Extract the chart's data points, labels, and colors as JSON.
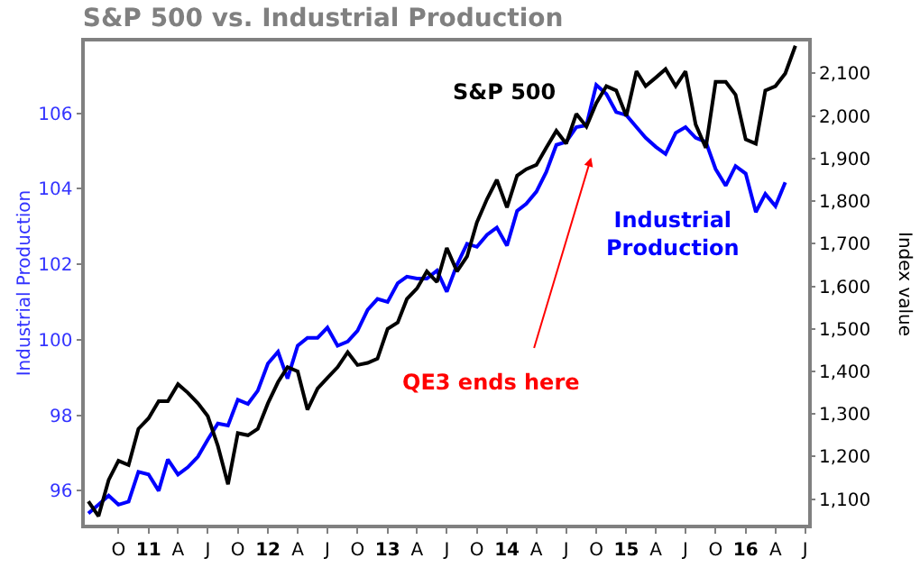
{
  "chart_data": {
    "type": "line",
    "title": "S&P 500 vs. Industrial Production",
    "ylabel": "Industrial Production",
    "y2label": "Index value",
    "x": [
      "2010-07",
      "2010-08",
      "2010-09",
      "2010-10",
      "2010-11",
      "2010-12",
      "2011-01",
      "2011-02",
      "2011-03",
      "2011-04",
      "2011-05",
      "2011-06",
      "2011-07",
      "2011-08",
      "2011-09",
      "2011-10",
      "2011-11",
      "2011-12",
      "2012-01",
      "2012-02",
      "2012-03",
      "2012-04",
      "2012-05",
      "2012-06",
      "2012-07",
      "2012-08",
      "2012-09",
      "2012-10",
      "2012-11",
      "2012-12",
      "2013-01",
      "2013-02",
      "2013-03",
      "2013-04",
      "2013-05",
      "2013-06",
      "2013-07",
      "2013-08",
      "2013-09",
      "2013-10",
      "2013-11",
      "2013-12",
      "2014-01",
      "2014-02",
      "2014-03",
      "2014-04",
      "2014-05",
      "2014-06",
      "2014-07",
      "2014-08",
      "2014-09",
      "2014-10",
      "2014-11",
      "2014-12",
      "2015-01",
      "2015-02",
      "2015-03",
      "2015-04",
      "2015-05",
      "2015-06",
      "2015-07",
      "2015-08",
      "2015-09",
      "2015-10",
      "2015-11",
      "2015-12",
      "2016-01",
      "2016-02",
      "2016-03",
      "2016-04",
      "2016-05",
      "2016-06"
    ],
    "series": [
      {
        "name": "S&P 500",
        "color": "#000000",
        "axis": "y2",
        "values": [
          1095,
          1060,
          1145,
          1190,
          1180,
          1265,
          1290,
          1330,
          1330,
          1370,
          1350,
          1325,
          1295,
          1225,
          1135,
          1255,
          1250,
          1265,
          1325,
          1375,
          1410,
          1400,
          1310,
          1360,
          1385,
          1410,
          1445,
          1415,
          1420,
          1430,
          1500,
          1515,
          1570,
          1595,
          1635,
          1610,
          1690,
          1635,
          1670,
          1750,
          1805,
          1850,
          1785,
          1860,
          1875,
          1885,
          1925,
          1965,
          1935,
          2005,
          1975,
          2030,
          2070,
          2060,
          2000,
          2105,
          2070,
          2090,
          2110,
          2070,
          2105,
          1980,
          1925,
          2080,
          2080,
          2050,
          1945,
          1935,
          2060,
          2070,
          2100,
          2165
        ]
      },
      {
        "name": "Industrial Production",
        "color": "#0000ff",
        "values": [
          95.4,
          95.63,
          95.87,
          95.63,
          95.71,
          96.5,
          96.43,
          96.0,
          96.83,
          96.43,
          96.62,
          96.9,
          97.35,
          97.78,
          97.73,
          98.41,
          98.3,
          98.65,
          99.37,
          99.68,
          98.97,
          99.84,
          100.05,
          100.05,
          100.32,
          99.84,
          99.95,
          100.24,
          100.79,
          101.08,
          101.0,
          101.5,
          101.67,
          101.62,
          101.62,
          101.83,
          101.27,
          101.98,
          102.54,
          102.46,
          102.78,
          102.97,
          102.49,
          103.41,
          103.6,
          103.92,
          104.44,
          105.16,
          105.24,
          105.63,
          105.68,
          106.75,
          106.51,
          106.03,
          105.95,
          105.63,
          105.35,
          105.11,
          104.92,
          105.48,
          105.63,
          105.35,
          105.24,
          104.52,
          104.08,
          104.6,
          104.4,
          103.38,
          103.86,
          103.54,
          104.17,
          null
        ]
      }
    ],
    "xlim": [
      "2010-06-20",
      "2016-07-10"
    ],
    "xticks": [
      {
        "value": "2010-10",
        "label": "O"
      },
      {
        "value": "2011-01",
        "label": "11"
      },
      {
        "value": "2011-04",
        "label": "A"
      },
      {
        "value": "2011-07",
        "label": "J"
      },
      {
        "value": "2011-10",
        "label": "O"
      },
      {
        "value": "2012-01",
        "label": "12"
      },
      {
        "value": "2012-04",
        "label": "A"
      },
      {
        "value": "2012-07",
        "label": "J"
      },
      {
        "value": "2012-10",
        "label": "O"
      },
      {
        "value": "2013-01",
        "label": "13"
      },
      {
        "value": "2013-04",
        "label": "A"
      },
      {
        "value": "2013-07",
        "label": "J"
      },
      {
        "value": "2013-10",
        "label": "O"
      },
      {
        "value": "2014-01",
        "label": "14"
      },
      {
        "value": "2014-04",
        "label": "A"
      },
      {
        "value": "2014-07",
        "label": "J"
      },
      {
        "value": "2014-10",
        "label": "O"
      },
      {
        "value": "2015-01",
        "label": "15"
      },
      {
        "value": "2015-04",
        "label": "A"
      },
      {
        "value": "2015-07",
        "label": "J"
      },
      {
        "value": "2015-10",
        "label": "O"
      },
      {
        "value": "2016-01",
        "label": "16"
      },
      {
        "value": "2016-04",
        "label": "A"
      },
      {
        "value": "2016-07",
        "label": "J"
      }
    ],
    "ylim": [
      95.1,
      107.9
    ],
    "yticks": [
      96,
      98,
      100,
      102,
      104,
      106
    ],
    "y2lim": [
      1040,
      2175
    ],
    "y2ticks": [
      {
        "value": 1100,
        "label": "1,100"
      },
      {
        "value": 1200,
        "label": "1,200"
      },
      {
        "value": 1300,
        "label": "1,300"
      },
      {
        "value": 1400,
        "label": "1,400"
      },
      {
        "value": 1500,
        "label": "1,500"
      },
      {
        "value": 1600,
        "label": "1,600"
      },
      {
        "value": 1700,
        "label": "1,700"
      },
      {
        "value": 1800,
        "label": "1,800"
      },
      {
        "value": 1900,
        "label": "1,900"
      },
      {
        "value": 2000,
        "label": "2,000"
      },
      {
        "value": 2100,
        "label": "2,100"
      }
    ],
    "annotations": [
      "QE3 ends here"
    ],
    "legend": false,
    "line_style": "solid",
    "marker": "none"
  }
}
